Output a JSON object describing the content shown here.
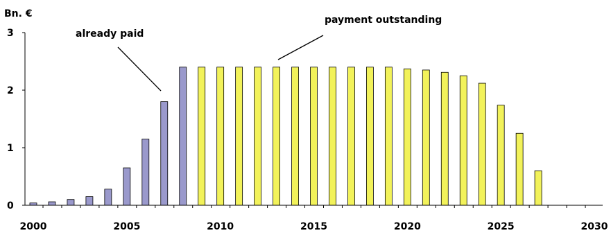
{
  "chart_data": {
    "type": "bar",
    "ylabel": "Bn. €",
    "ylim": [
      0,
      3
    ],
    "xlim": [
      2000,
      2030
    ],
    "yticks": [
      "0",
      "1",
      "2",
      "3"
    ],
    "xticks": [
      "2000",
      "2005",
      "2010",
      "2015",
      "2020",
      "2025",
      "2030"
    ],
    "grid": false,
    "colors": {
      "paid": "#9a99cc",
      "outstanding": "#f2f25a",
      "outline": "#000000"
    },
    "series": [
      {
        "name": "already paid",
        "x": [
          2000,
          2001,
          2002,
          2003,
          2004,
          2005,
          2006,
          2007,
          2008
        ],
        "values": [
          0.04,
          0.06,
          0.1,
          0.15,
          0.28,
          0.65,
          1.15,
          1.8,
          2.4
        ]
      },
      {
        "name": "payment outstanding",
        "x": [
          2009,
          2010,
          2011,
          2012,
          2013,
          2014,
          2015,
          2016,
          2017,
          2018,
          2019,
          2020,
          2021,
          2022,
          2023,
          2024,
          2025,
          2026,
          2027
        ],
        "values": [
          2.4,
          2.4,
          2.4,
          2.4,
          2.4,
          2.4,
          2.4,
          2.4,
          2.4,
          2.4,
          2.4,
          2.37,
          2.35,
          2.31,
          2.25,
          2.12,
          1.74,
          1.25,
          0.6
        ]
      }
    ],
    "annotations": [
      {
        "text": "already paid",
        "points_to": {
          "x": 2007,
          "y": 1.9
        }
      },
      {
        "text": "payment outstanding",
        "points_to": {
          "x": 2013,
          "y": 2.5
        }
      }
    ]
  }
}
